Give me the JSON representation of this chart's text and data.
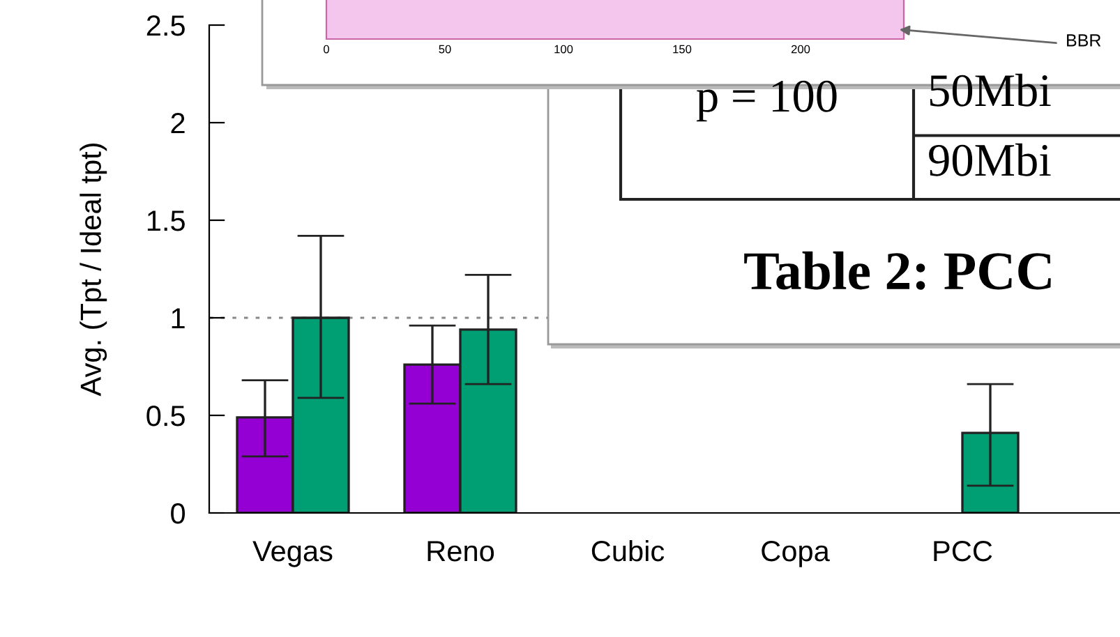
{
  "chart_data": {
    "type": "bar",
    "ylabel": "Avg. (Tpt / Ideal tpt)",
    "categories": [
      "Vegas",
      "Reno",
      "Cubic",
      "Copa",
      "PCC",
      null
    ],
    "series": [
      {
        "color": "#9400d3",
        "values": [
          0.49,
          0.76,
          null,
          null,
          null,
          null
        ],
        "errors": [
          [
            0.29,
            0.68
          ],
          [
            0.56,
            0.96
          ],
          null,
          null,
          null,
          null
        ]
      },
      {
        "color": "#009e73",
        "values": [
          1.0,
          0.94,
          null,
          null,
          0.41,
          null
        ],
        "errors": [
          [
            0.59,
            1.42
          ],
          [
            0.66,
            1.22
          ],
          null,
          null,
          [
            0.14,
            0.66
          ],
          null
        ]
      }
    ],
    "ylim": [
      0,
      2.5
    ],
    "yticks": [
      0,
      0.5,
      1,
      1.5,
      2,
      2.5
    ],
    "ref_lines": [
      {
        "axis": "y",
        "value": 1,
        "color": "#888888",
        "line_style": "dotted"
      }
    ],
    "annotations": [
      "0",
      "50",
      "100",
      "150",
      "200",
      "BBR",
      "p = 100",
      "50Mbi",
      "90Mbi",
      "Table 2: PCC"
    ]
  }
}
